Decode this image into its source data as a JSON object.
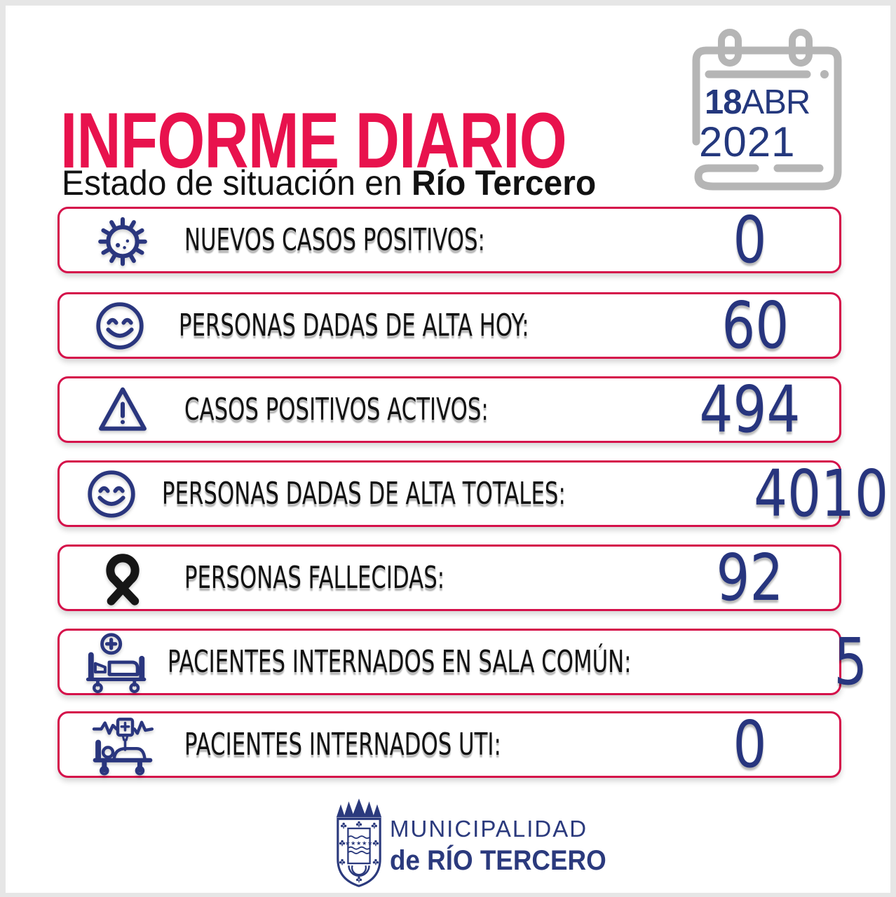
{
  "header": {
    "title": "INFORME DIARIO",
    "subtitle_prefix": "Estado de situación en ",
    "subtitle_bold": "Río Tercero"
  },
  "date": {
    "day": "18",
    "month": "ABR",
    "year": "2021"
  },
  "rows": [
    {
      "icon": "virus-icon",
      "label": "NUEVOS CASOS POSITIVOS:",
      "value": "0"
    },
    {
      "icon": "smiley-icon",
      "label": "PERSONAS DADAS DE ALTA HOY:",
      "value": "60"
    },
    {
      "icon": "warning-icon",
      "label": "CASOS POSITIVOS ACTIVOS:",
      "value": "494"
    },
    {
      "icon": "smiley-icon",
      "label": "PERSONAS DADAS DE ALTA TOTALES:",
      "value": "4010"
    },
    {
      "icon": "ribbon-icon",
      "label": "PERSONAS FALLECIDAS:",
      "value": "92"
    },
    {
      "icon": "hospital-bed-icon",
      "label": "PACIENTES INTERNADOS EN SALA COMÚN:",
      "value": "5"
    },
    {
      "icon": "icu-bed-icon",
      "label": "PACIENTES INTERNADOS UTI:",
      "value": "0"
    }
  ],
  "footer": {
    "org_line1": "MUNICIPALIDAD",
    "org_line2": "de RÍO TERCERO"
  },
  "colors": {
    "title_red": "#E8124D",
    "row_border_red": "#D5104A",
    "value_navy": "#27357E",
    "icon_navy": "#2A367E",
    "ribbon_black": "#161616",
    "calendar_gray": "#B5B5B5",
    "footer_navy": "#2B3A7D",
    "frame_gray": "#E6E6E6"
  }
}
